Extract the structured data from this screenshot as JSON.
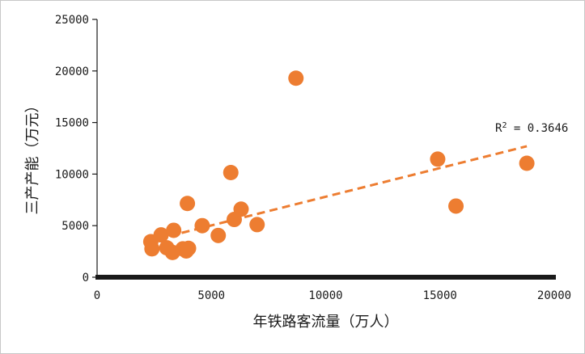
{
  "chart_data": {
    "type": "scatter",
    "title": "",
    "xlabel": "年铁路客流量（万人）",
    "ylabel": "三产产能（万元）",
    "xlim": [
      0,
      20000
    ],
    "ylim": [
      0,
      25000
    ],
    "x_ticks": [
      "0",
      "5000",
      "10000",
      "15000",
      "20000"
    ],
    "y_ticks": [
      "0",
      "5000",
      "10000",
      "15000",
      "20000",
      "25000"
    ],
    "grid": false,
    "legend": "none",
    "point_color": "#ED7D31",
    "trendline": {
      "type": "linear",
      "style": "dashed",
      "color": "#ED7D31",
      "x_range": [
        3700,
        18800
      ],
      "y_range": [
        4300,
        12700
      ],
      "r2_label_prefix": "R",
      "r2_label_sup": "2",
      "r2_label_value": " = 0.3646"
    },
    "points": [
      {
        "x": 2350,
        "y": 3450
      },
      {
        "x": 2400,
        "y": 2750
      },
      {
        "x": 2800,
        "y": 4100
      },
      {
        "x": 3050,
        "y": 2850
      },
      {
        "x": 3300,
        "y": 2400
      },
      {
        "x": 3350,
        "y": 4550
      },
      {
        "x": 3750,
        "y": 2750
      },
      {
        "x": 3900,
        "y": 2550
      },
      {
        "x": 4000,
        "y": 2800
      },
      {
        "x": 3950,
        "y": 7150
      },
      {
        "x": 4600,
        "y": 5000
      },
      {
        "x": 5300,
        "y": 4050
      },
      {
        "x": 5850,
        "y": 10150
      },
      {
        "x": 6000,
        "y": 5600
      },
      {
        "x": 6300,
        "y": 6600
      },
      {
        "x": 7000,
        "y": 5100
      },
      {
        "x": 8700,
        "y": 19300
      },
      {
        "x": 14900,
        "y": 11450
      },
      {
        "x": 15700,
        "y": 6900
      },
      {
        "x": 18800,
        "y": 11050
      }
    ]
  }
}
